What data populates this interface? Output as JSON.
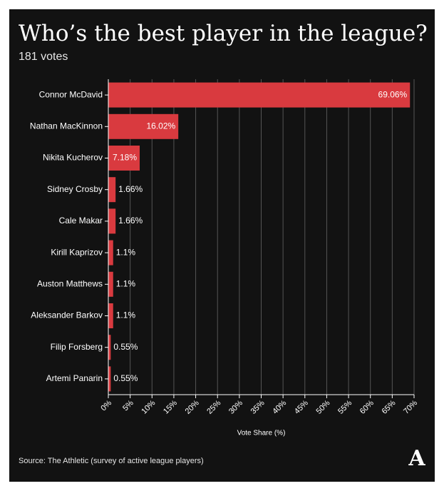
{
  "title": "Who’s the best player in the league?",
  "subtitle": "181 votes",
  "source": "Source: The Athletic (survey of active league players)",
  "logo_text": "A",
  "colors": {
    "background": "#121212",
    "bar": "#d93a3f",
    "text": "#ffffff",
    "grid": "#555555"
  },
  "chart_data": {
    "type": "bar",
    "orientation": "horizontal",
    "categories": [
      "Connor McDavid",
      "Nathan MacKinnon",
      "Nikita Kucherov",
      "Sidney Crosby",
      "Cale Makar",
      "Kirill Kaprizov",
      "Auston Matthews",
      "Aleksander Barkov",
      "Filip Forsberg",
      "Artemi Panarin"
    ],
    "values": [
      69.06,
      16.02,
      7.18,
      1.66,
      1.66,
      1.1,
      1.1,
      1.1,
      0.55,
      0.55
    ],
    "value_labels": [
      "69.06%",
      "16.02%",
      "7.18%",
      "1.66%",
      "1.66%",
      "1.1%",
      "1.1%",
      "1.1%",
      "0.55%",
      "0.55%"
    ],
    "xlabel": "Vote Share (%)",
    "ylabel": "",
    "xlim": [
      0,
      70
    ],
    "xticks": [
      "0%",
      "5%",
      "10%",
      "15%",
      "20%",
      "25%",
      "30%",
      "35%",
      "40%",
      "45%",
      "50%",
      "55%",
      "60%",
      "65%",
      "70%"
    ],
    "grid": true
  }
}
